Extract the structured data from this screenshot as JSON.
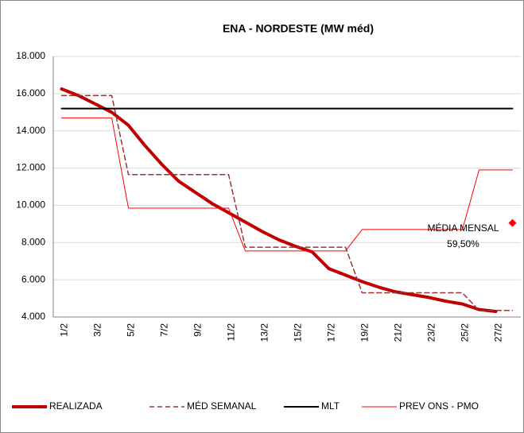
{
  "chart_data": {
    "type": "line",
    "title": "ENA - NORDESTE (MW méd)",
    "categories": [
      "1/2",
      null,
      "3/2",
      null,
      "5/2",
      null,
      "7/2",
      null,
      "9/2",
      null,
      "11/2",
      null,
      "13/2",
      null,
      "15/2",
      null,
      "17/2",
      null,
      "19/2",
      null,
      "21/2",
      null,
      "23/2",
      null,
      "25/2",
      null,
      "27/2",
      null
    ],
    "series": [
      {
        "name": "REALIZADA",
        "color": "#c00000",
        "line_style": "thick",
        "values": [
          16250,
          15900,
          15450,
          15000,
          14300,
          13200,
          12200,
          11300,
          10700,
          10100,
          9600,
          9100,
          8600,
          8150,
          7800,
          7500,
          6600,
          6250,
          5900,
          5600,
          5350,
          5200,
          5050,
          4850,
          4700,
          4400,
          4300,
          null
        ]
      },
      {
        "name": "MÉD SEMANAL",
        "color": "#953735",
        "line_style": "dashed",
        "values": [
          15900,
          15900,
          15900,
          15900,
          11650,
          11650,
          11650,
          11650,
          11650,
          11650,
          11650,
          7750,
          7750,
          7750,
          7750,
          7750,
          7750,
          7750,
          5300,
          5300,
          5300,
          5300,
          5300,
          5300,
          5300,
          4350,
          4350,
          4350
        ]
      },
      {
        "name": "MLT",
        "color": "#000000",
        "line_style": "solid",
        "values": [
          15200,
          15200,
          15200,
          15200,
          15200,
          15200,
          15200,
          15200,
          15200,
          15200,
          15200,
          15200,
          15200,
          15200,
          15200,
          15200,
          15200,
          15200,
          15200,
          15200,
          15200,
          15200,
          15200,
          15200,
          15200,
          15200,
          15200,
          15200
        ]
      },
      {
        "name": "PREV ONS - PMO",
        "color": "#ff0000",
        "line_style": "thin",
        "values": [
          14700,
          14700,
          14700,
          14700,
          9850,
          9850,
          9850,
          9850,
          9850,
          9850,
          9850,
          7550,
          7550,
          7550,
          7550,
          7550,
          7550,
          7550,
          8700,
          8700,
          8700,
          8700,
          8700,
          8700,
          8700,
          11900,
          11900,
          11900
        ]
      }
    ],
    "annotation": {
      "text": "MÉDIA MENSAL",
      "label": "59,50%",
      "color": "#ff0000",
      "values": [
        null,
        null,
        null,
        null,
        null,
        null,
        null,
        null,
        null,
        null,
        null,
        null,
        null,
        null,
        null,
        null,
        null,
        null,
        null,
        null,
        null,
        null,
        null,
        null,
        null,
        null,
        null,
        9050
      ]
    },
    "ylim": [
      4000,
      18000
    ],
    "yticks": [
      {
        "value": 4000,
        "label": "4.000"
      },
      {
        "value": 6000,
        "label": "6.000"
      },
      {
        "value": 8000,
        "label": "8.000"
      },
      {
        "value": 10000,
        "label": "10.000"
      },
      {
        "value": 12000,
        "label": "12.000"
      },
      {
        "value": 14000,
        "label": "14.000"
      },
      {
        "value": 16000,
        "label": "16.000"
      },
      {
        "value": 18000,
        "label": "18.000"
      }
    ],
    "grid": true,
    "legend": "bottom"
  }
}
